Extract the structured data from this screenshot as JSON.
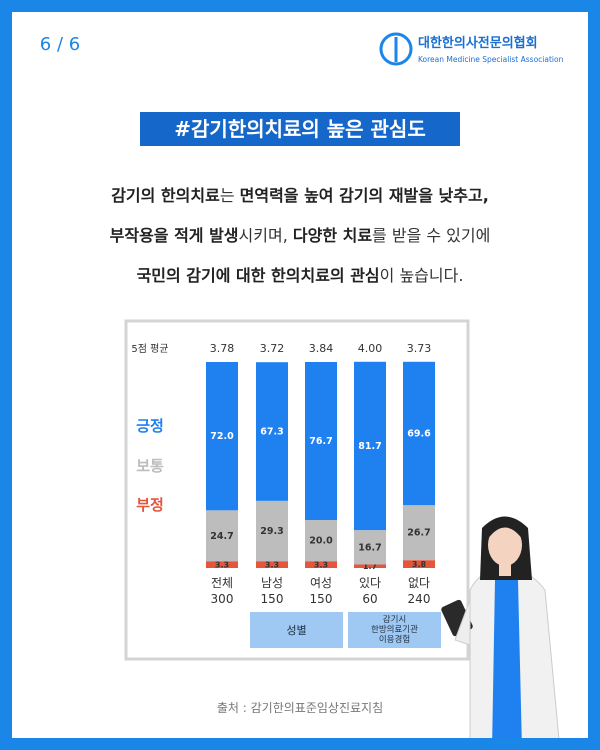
{
  "page_number": "6 / 6",
  "logo": {
    "name": "대한한의사전문의협회",
    "subtitle": "Korean Medicine Specialist Association"
  },
  "heading": "#감기한의치료의 높은 관심도",
  "paragraph": [
    [
      {
        "text": "감기의 한의치료",
        "bold": true
      },
      {
        "text": "는 ",
        "bold": false
      },
      {
        "text": "면역력을 높여 감기의 재발을 낮추고,",
        "bold": true
      }
    ],
    [
      {
        "text": "부작용을 적게 발생",
        "bold": true
      },
      {
        "text": "시키며, ",
        "bold": false
      },
      {
        "text": "다양한 치료",
        "bold": true
      },
      {
        "text": "를 받을 수 있기에",
        "bold": false
      }
    ],
    [
      {
        "text": "국민의 감기에 대한 한의치료의 관심",
        "bold": true
      },
      {
        "text": "이 높습니다.",
        "bold": false
      }
    ]
  ],
  "chart_data": {
    "type": "stacked_bar",
    "categories": [
      "전체",
      "남성",
      "여성",
      "있다",
      "없다"
    ],
    "sample_sizes": [
      300,
      150,
      150,
      60,
      240
    ],
    "average_label": "5점 평균",
    "averages": [
      "3.78",
      "3.72",
      "3.84",
      "4.00",
      "3.73"
    ],
    "ylim": [
      0,
      100
    ],
    "series": [
      {
        "name": "부정",
        "color": "#e4553b",
        "values": [
          3.3,
          3.3,
          3.3,
          1.7,
          3.8
        ]
      },
      {
        "name": "보통",
        "color": "#bdbdbd",
        "values": [
          24.7,
          29.3,
          20.0,
          16.7,
          26.7
        ],
        "value_labels": [
          "24.7",
          "29.3",
          "20.0",
          "16.7",
          "26.7"
        ]
      },
      {
        "name": "긍정",
        "color": "#1f80f0",
        "values": [
          72.0,
          67.3,
          76.7,
          81.7,
          69.6
        ],
        "value_labels": [
          "72.0",
          "67.3",
          "76.7",
          "81.7",
          "69.6"
        ]
      }
    ],
    "groups": [
      {
        "label": "성별",
        "categories": [
          "남성",
          "여성"
        ]
      },
      {
        "label": "감기시 한방의료기관 이용경험",
        "categories": [
          "있다",
          "없다"
        ]
      }
    ]
  },
  "source": "출처 : 감기한의표준임상진료지침"
}
